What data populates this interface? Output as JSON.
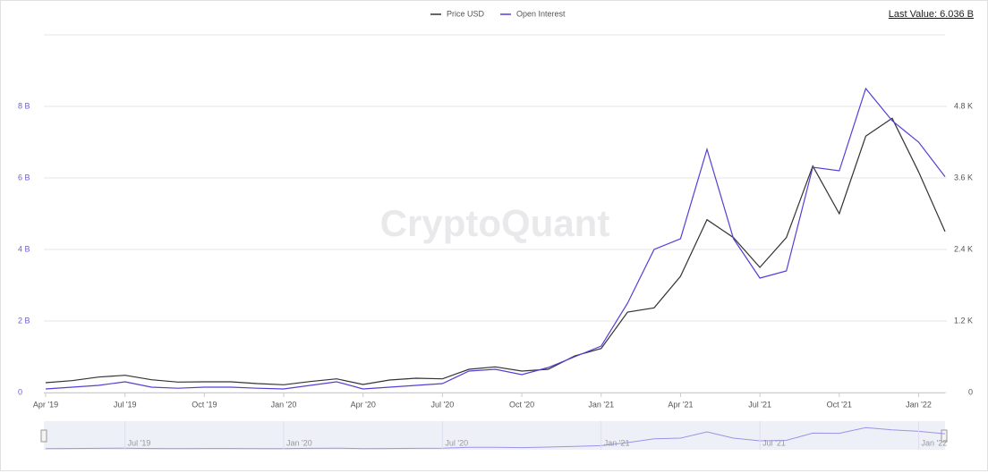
{
  "chart_data": {
    "type": "line",
    "last_value_label": "Last Value: 6.036 B",
    "watermark": "CryptoQuant",
    "x": [
      "2019-04",
      "2019-05",
      "2019-06",
      "2019-07",
      "2019-08",
      "2019-09",
      "2019-10",
      "2019-11",
      "2019-12",
      "2020-01",
      "2020-02",
      "2020-03",
      "2020-04",
      "2020-05",
      "2020-06",
      "2020-07",
      "2020-08",
      "2020-09",
      "2020-10",
      "2020-11",
      "2020-12",
      "2021-01",
      "2021-02",
      "2021-03",
      "2021-04",
      "2021-05",
      "2021-06",
      "2021-07",
      "2021-08",
      "2021-09",
      "2021-10",
      "2021-11",
      "2021-12",
      "2022-01",
      "2022-02"
    ],
    "series": [
      {
        "name": "Price USD",
        "color": "#333333",
        "axis": "y2",
        "values": [
          165,
          200,
          260,
          290,
          215,
          175,
          180,
          180,
          150,
          130,
          185,
          230,
          135,
          210,
          240,
          230,
          390,
          430,
          360,
          390,
          615,
          740,
          1350,
          1420,
          1950,
          2900,
          2600,
          2100,
          2600,
          3800,
          3000,
          4300,
          4600,
          3700,
          2700
        ]
      },
      {
        "name": "Open Interest",
        "color": "#5240d6",
        "values": [
          100000000,
          150000000,
          200000000,
          300000000,
          150000000,
          120000000,
          150000000,
          150000000,
          120000000,
          100000000,
          200000000,
          300000000,
          100000000,
          150000000,
          200000000,
          250000000,
          600000000,
          650000000,
          500000000,
          700000000,
          1000000000,
          1300000000,
          2500000000,
          4000000000,
          4300000000,
          6800000000,
          4300000000,
          3200000000,
          3400000000,
          6300000000,
          6200000000,
          8500000000,
          7600000000,
          7000000000,
          6036000000
        ]
      }
    ],
    "xticks": [
      {
        "value": "2019-04",
        "label": "Apr '19"
      },
      {
        "value": "2019-07",
        "label": "Jul '19"
      },
      {
        "value": "2019-10",
        "label": "Oct '19"
      },
      {
        "value": "2020-01",
        "label": "Jan '20"
      },
      {
        "value": "2020-04",
        "label": "Apr '20"
      },
      {
        "value": "2020-07",
        "label": "Jul '20"
      },
      {
        "value": "2020-10",
        "label": "Oct '20"
      },
      {
        "value": "2021-01",
        "label": "Jan '21"
      },
      {
        "value": "2021-04",
        "label": "Apr '21"
      },
      {
        "value": "2021-07",
        "label": "Jul '21"
      },
      {
        "value": "2021-10",
        "label": "Oct '21"
      },
      {
        "value": "2022-01",
        "label": "Jan '22"
      }
    ],
    "ylim": [
      0,
      10000000000
    ],
    "yticks": [
      0,
      {
        "value": 2000000000,
        "label": "2 B"
      },
      {
        "value": 4000000000,
        "label": "4 B"
      },
      {
        "value": 6000000000,
        "label": "6 B"
      },
      {
        "value": 8000000000,
        "label": "8 B"
      }
    ],
    "y2lim": [
      0,
      6000
    ],
    "y2ticks": [
      0,
      {
        "value": 1200,
        "label": "1.2 K"
      },
      {
        "value": 2400,
        "label": "2.4 K"
      },
      {
        "value": 3600,
        "label": "3.6 K"
      },
      {
        "value": 4800,
        "label": "4.8 K"
      }
    ],
    "grid": true,
    "navigator": {
      "ticks": [
        {
          "value": "2019-07",
          "label": "Jul '19"
        },
        {
          "value": "2020-01",
          "label": "Jan '20"
        },
        {
          "value": "2020-07",
          "label": "Jul '20"
        },
        {
          "value": "2021-01",
          "label": "Jan '21"
        },
        {
          "value": "2021-07",
          "label": "Jul '21"
        },
        {
          "value": "2022-01",
          "label": "Jan '22"
        }
      ]
    }
  }
}
